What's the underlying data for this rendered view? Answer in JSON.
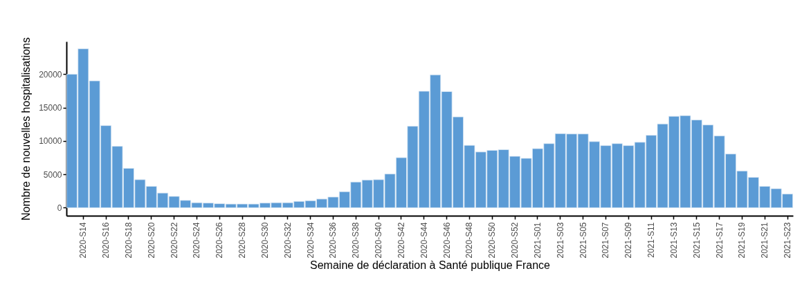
{
  "chart_data": {
    "type": "bar",
    "ylabel": "Nombre de nouvelles hospitalisations",
    "xlabel": "Semaine de déclaration à Santé publique France",
    "categories": [
      null,
      "2020-S14",
      null,
      "2020-S16",
      null,
      "2020-S18",
      null,
      "2020-S20",
      null,
      "2020-S22",
      null,
      "2020-S24",
      null,
      "2020-S26",
      null,
      "2020-S28",
      null,
      "2020-S30",
      null,
      "2020-S32",
      null,
      "2020-S34",
      null,
      "2020-S36",
      null,
      "2020-S38",
      null,
      "2020-S40",
      null,
      "2020-S42",
      null,
      "2020-S44",
      null,
      "2020-S46",
      null,
      "2020-S48",
      null,
      "2020-S50",
      null,
      "2020-S52",
      null,
      "2021-S01",
      null,
      "2021-S03",
      null,
      "2021-S05",
      null,
      "2021-S07",
      null,
      "2021-S09",
      null,
      "2021-S11",
      null,
      "2021-S13",
      null,
      "2021-S15",
      null,
      "2021-S17",
      null,
      "2021-S19",
      null,
      "2021-S21",
      null,
      "2021-S23"
    ],
    "values": [
      20000,
      23800,
      19000,
      12300,
      9200,
      5900,
      4200,
      3200,
      2200,
      1700,
      1100,
      750,
      700,
      600,
      550,
      550,
      550,
      700,
      750,
      750,
      950,
      1050,
      1300,
      1600,
      2400,
      3850,
      4150,
      4200,
      5050,
      7500,
      12200,
      17450,
      19900,
      17400,
      13600,
      9350,
      8350,
      8600,
      8700,
      7700,
      7400,
      8850,
      9600,
      11100,
      11050,
      11050,
      9900,
      9300,
      9600,
      9300,
      9800,
      10850,
      12550,
      13700,
      13800,
      13150,
      12400,
      10750,
      8050,
      5500,
      4550,
      3200,
      2850,
      2050
    ],
    "color": "#5b9bd5",
    "ylim": [
      -1200,
      24900
    ],
    "yticks": [
      0,
      5000,
      10000,
      15000,
      20000
    ],
    "grid": false
  }
}
